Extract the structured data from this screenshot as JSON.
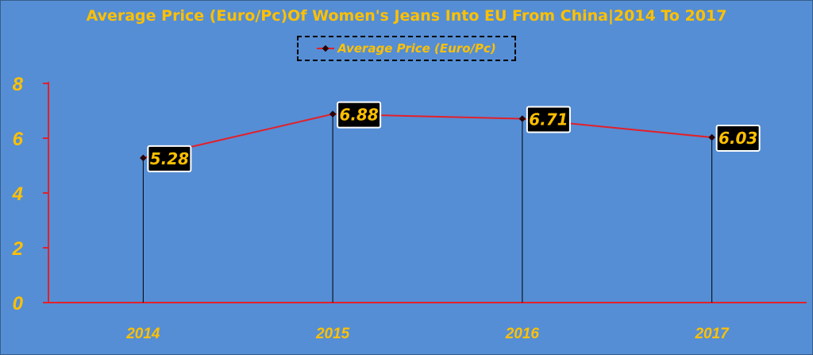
{
  "chart_data": {
    "type": "line",
    "title": "Average Price (Euro/Pc)Of Women's Jeans Into EU From China|2014 To 2017",
    "categories": [
      "2014",
      "2015",
      "2016",
      "2017"
    ],
    "series": [
      {
        "name": "Average Price (Euro/Pc)",
        "values": [
          5.28,
          6.88,
          6.71,
          6.03
        ]
      }
    ],
    "data_labels": [
      "5.28",
      "6.88",
      "6.71",
      "6.03"
    ],
    "y_ticks": [
      "0",
      "2",
      "4",
      "6",
      "8"
    ],
    "ylim": [
      0,
      8
    ],
    "xlabel": "",
    "ylabel": "",
    "grid": false,
    "drop_lines": true,
    "legend_position": "top",
    "colors": {
      "background": "#558ed5",
      "text": "#ffc000",
      "axis": "#e3202a",
      "line": "#e3202a",
      "marker": "#2a0000",
      "label_box": "#000000",
      "label_border": "#ffffff"
    }
  }
}
